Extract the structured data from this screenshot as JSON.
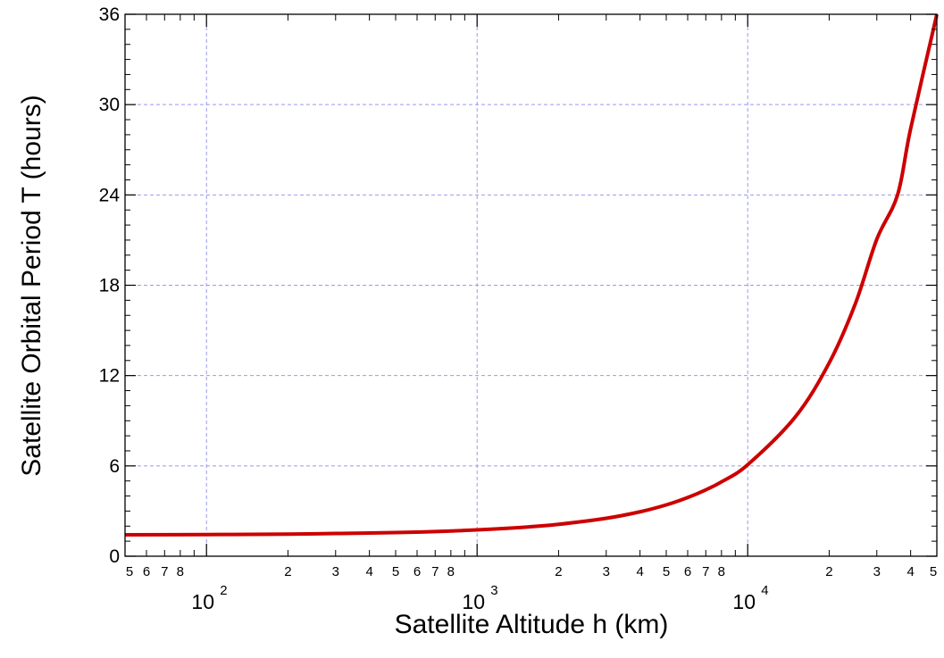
{
  "chart_data": {
    "type": "line",
    "title": "",
    "xlabel": "Satellite Altitude h (km)",
    "ylabel": "Satellite Orbital Period T (hours)",
    "xscale": "log",
    "xlim": [
      50,
      50000
    ],
    "ylim": [
      0,
      36
    ],
    "grid": true,
    "legend": "none",
    "y_ticks": [
      "0",
      "6",
      "12",
      "18",
      "24",
      "30",
      "36"
    ],
    "x_major_ticks": [
      {
        "base": "10",
        "exp": "2"
      },
      {
        "base": "10",
        "exp": "3"
      },
      {
        "base": "10",
        "exp": "4"
      }
    ],
    "x_minor_tick_labels": [
      {
        "v": 50,
        "t": "5"
      },
      {
        "v": 60,
        "t": "6"
      },
      {
        "v": 70,
        "t": "7"
      },
      {
        "v": 80,
        "t": "8"
      },
      {
        "v": 200,
        "t": "2"
      },
      {
        "v": 300,
        "t": "3"
      },
      {
        "v": 400,
        "t": "4"
      },
      {
        "v": 500,
        "t": "5"
      },
      {
        "v": 600,
        "t": "6"
      },
      {
        "v": 700,
        "t": "7"
      },
      {
        "v": 800,
        "t": "8"
      },
      {
        "v": 2000,
        "t": "2"
      },
      {
        "v": 3000,
        "t": "3"
      },
      {
        "v": 4000,
        "t": "4"
      },
      {
        "v": 5000,
        "t": "5"
      },
      {
        "v": 6000,
        "t": "6"
      },
      {
        "v": 7000,
        "t": "7"
      },
      {
        "v": 8000,
        "t": "8"
      },
      {
        "v": 20000,
        "t": "2"
      },
      {
        "v": 30000,
        "t": "3"
      },
      {
        "v": 40000,
        "t": "4"
      },
      {
        "v": 50000,
        "t": "5"
      }
    ],
    "series": [
      {
        "color": "#cc0000",
        "x": [
          50,
          100,
          200,
          300,
          500,
          700,
          1000,
          1500,
          2000,
          3000,
          4000,
          5000,
          6000,
          7000,
          8000,
          10000,
          15000,
          20000,
          25000,
          30000,
          35786,
          40000,
          50000
        ],
        "y": [
          1.42,
          1.44,
          1.47,
          1.51,
          1.57,
          1.64,
          1.75,
          1.93,
          2.12,
          2.52,
          2.95,
          3.41,
          3.9,
          4.41,
          4.94,
          6.08,
          9.26,
          12.84,
          16.78,
          21.06,
          24.0,
          28.4,
          36.0
        ]
      }
    ]
  },
  "colors": {
    "curve": "#cc0000",
    "grid": "#9999ee",
    "axes": "#000000"
  }
}
